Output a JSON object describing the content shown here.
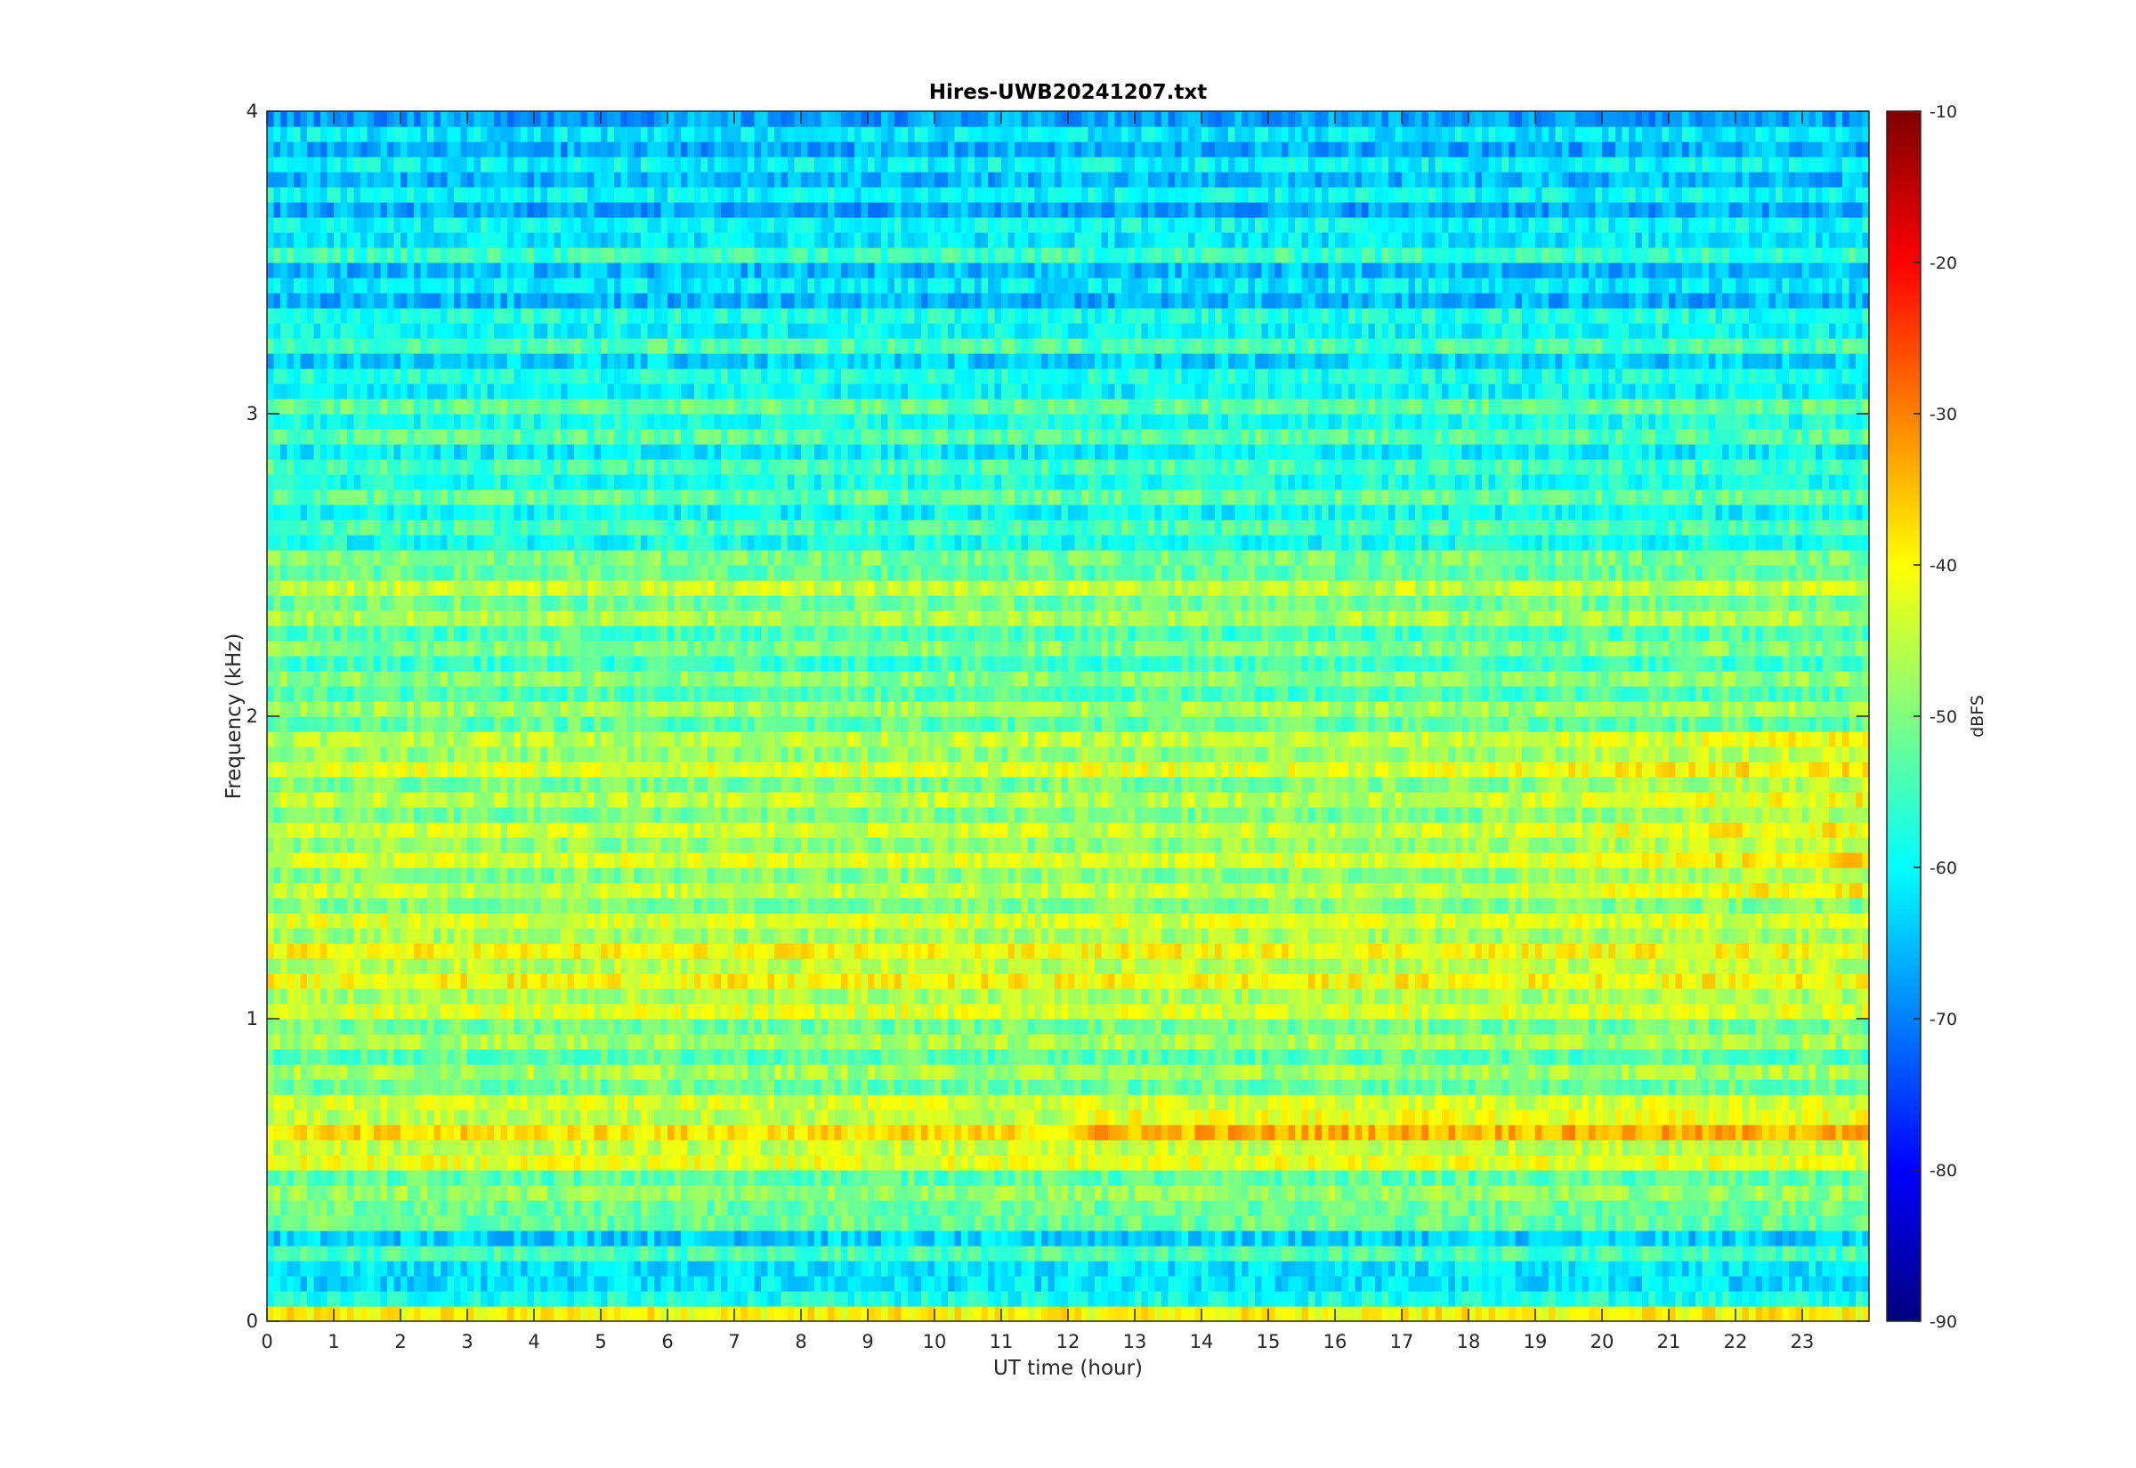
{
  "chart_data": {
    "type": "heatmap",
    "title": "Hires-UWB20241207.txt",
    "xlabel": "UT time (hour)",
    "ylabel": "Frequency (kHz)",
    "xlim": [
      0,
      24
    ],
    "ylim": [
      0,
      4
    ],
    "x_ticks": [
      "0",
      "1",
      "2",
      "3",
      "4",
      "5",
      "6",
      "7",
      "8",
      "9",
      "10",
      "11",
      "12",
      "13",
      "14",
      "15",
      "16",
      "17",
      "18",
      "19",
      "20",
      "21",
      "22",
      "23"
    ],
    "y_ticks": [
      "0",
      "1",
      "2",
      "3",
      "4"
    ],
    "colorbar": {
      "label": "dBFS",
      "clim": [
        -90,
        -10
      ],
      "ticks": [
        "-90",
        "-80",
        "-70",
        "-60",
        "-50",
        "-40",
        "-30",
        "-20",
        "-10"
      ],
      "colormap": "jet"
    },
    "band_levels_dBFS": {
      "description_freq_kHz": [
        0.05,
        0.1,
        0.2,
        0.3,
        0.35,
        0.45,
        0.55,
        0.65,
        0.75,
        0.85,
        0.95,
        1.05,
        1.15,
        1.25,
        1.35,
        1.45,
        1.55,
        1.65,
        1.75,
        1.85,
        1.95,
        2.05,
        2.15,
        2.25,
        2.35,
        2.45,
        2.55,
        2.65,
        2.75,
        2.85,
        2.95,
        3.05,
        3.15,
        3.25,
        3.35,
        3.45,
        3.55,
        3.65,
        3.75,
        3.85,
        3.95
      ],
      "mean_level": [
        -42,
        -68,
        -55,
        -62,
        -47,
        -52,
        -42,
        -40,
        -48,
        -50,
        -49,
        -44,
        -42,
        -43,
        -46,
        -47,
        -45,
        -47,
        -48,
        -44,
        -49,
        -50,
        -52,
        -52,
        -48,
        -47,
        -55,
        -57,
        -54,
        -58,
        -55,
        -55,
        -62,
        -55,
        -62,
        -64,
        -56,
        -64,
        -62,
        -63,
        -64
      ]
    },
    "colors": {
      "axes_bg": "#ffffff",
      "axis_line": "#262626"
    }
  }
}
